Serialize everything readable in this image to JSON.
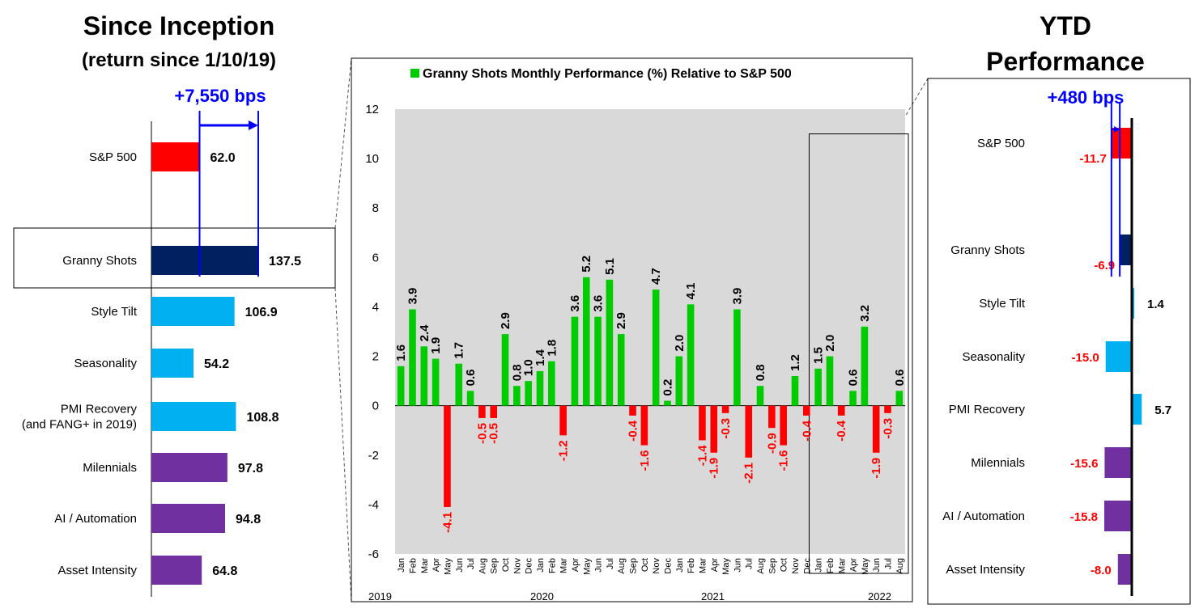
{
  "colors": {
    "sp500": "#ff0000",
    "granny": "#002060",
    "style": "#00b0f0",
    "theme": "#7030a0",
    "pos": "#00cc00",
    "neg": "#ff0000",
    "annot": "#0000ff",
    "plot_bg": "#d9d9d9",
    "neg_label": "#ff0000"
  },
  "left_panel": {
    "title": "Since Inception",
    "subtitle": "(return since 1/10/19)",
    "annotation": "+7,550 bps"
  },
  "right_panel": {
    "title_line1": "YTD",
    "title_line2": "Performance",
    "annotation": "+480 bps"
  },
  "chart_data": [
    {
      "id": "since-inception",
      "type": "bar",
      "orientation": "horizontal",
      "categories": [
        "S&P 500",
        "Granny Shots",
        "Style Tilt",
        "Seasonality",
        "PMI Recovery\n(and FANG+ in 2019)",
        "Milennials",
        "AI / Automation",
        "Asset Intensity"
      ],
      "values": [
        62.0,
        137.5,
        106.9,
        54.2,
        108.8,
        97.8,
        94.8,
        64.8
      ],
      "labels": [
        "62.0",
        "137.5",
        "106.9",
        "54.2",
        "108.8",
        "97.8",
        "94.8",
        "64.8"
      ],
      "color_keys": [
        "sp500",
        "granny",
        "style",
        "style",
        "style",
        "theme",
        "theme",
        "theme"
      ],
      "highlight": "Granny Shots",
      "xlim": [
        0,
        137.5
      ]
    },
    {
      "id": "monthly",
      "type": "bar",
      "title": "Granny Shots Monthly Performance (%) Relative to S&P 500",
      "categories": [
        "Jan",
        "Feb",
        "Mar",
        "Apr",
        "May",
        "Jun",
        "Jul",
        "Aug",
        "Sep",
        "Oct",
        "Nov",
        "Dec",
        "Jan",
        "Feb",
        "Mar",
        "Apr",
        "May",
        "Jun",
        "Jul",
        "Aug",
        "Sep",
        "Oct",
        "Nov",
        "Dec",
        "Jan",
        "Feb",
        "Mar",
        "Apr",
        "May",
        "Jun",
        "Jul",
        "Aug",
        "Sep",
        "Oct",
        "Nov",
        "Dec",
        "Jan",
        "Feb",
        "Mar",
        "Apr",
        "May",
        "Jun",
        "Jul",
        "Aug"
      ],
      "values": [
        1.6,
        3.9,
        2.4,
        1.9,
        -4.1,
        1.7,
        0.6,
        -0.5,
        -0.5,
        2.9,
        0.8,
        1.0,
        1.4,
        1.8,
        -1.2,
        3.6,
        5.2,
        3.6,
        5.1,
        2.9,
        -0.4,
        -1.6,
        4.7,
        0.2,
        2.0,
        4.1,
        -1.4,
        -1.9,
        -0.3,
        3.9,
        -2.1,
        0.8,
        -0.9,
        -1.6,
        1.2,
        -0.4,
        1.5,
        2.0,
        -0.4,
        0.6,
        3.2,
        -1.9,
        -0.3,
        0.6
      ],
      "labels": [
        "1.6",
        "3.9",
        "2.4",
        "1.9",
        "-4.1",
        "1.7",
        "0.6",
        "-0.5",
        "-0.5",
        "2.9",
        "0.8",
        "1.0",
        "1.4",
        "1.8",
        "-1.2",
        "3.6",
        "5.2",
        "3.6",
        "5.1",
        "2.9",
        "-0.4",
        "-1.6",
        "4.7",
        "0.2",
        "2.0",
        "4.1",
        "-1.4",
        "-1.9",
        "-0.3",
        "3.9",
        "-2.1",
        "0.8",
        "-0.9",
        "-1.6",
        "1.2",
        "-0.4",
        "1.5",
        "2.0",
        "-0.4",
        "0.6",
        "3.2",
        "-1.9",
        "-0.3",
        "0.6"
      ],
      "years": [
        {
          "label": "2019",
          "start": 0
        },
        {
          "label": "2020",
          "start": 12
        },
        {
          "label": "2021",
          "start": 24
        },
        {
          "label": "2022",
          "start": 36
        }
      ],
      "yticks": [
        "12",
        "10",
        "8",
        "6",
        "4",
        "2",
        "0",
        "-2",
        "-4",
        "-6"
      ],
      "ylim": [
        -6,
        12
      ],
      "highlight_range": [
        36,
        43
      ]
    },
    {
      "id": "ytd",
      "type": "bar",
      "orientation": "horizontal",
      "categories": [
        "S&P 500",
        "Granny Shots",
        "Style Tilt",
        "Seasonality",
        "PMI Recovery",
        "Milennials",
        "AI / Automation",
        "Asset Intensity"
      ],
      "values": [
        -11.7,
        -6.9,
        1.4,
        -15.0,
        5.7,
        -15.6,
        -15.8,
        -8.0
      ],
      "labels": [
        "-11.7",
        "-6.9",
        "1.4",
        "-15.0",
        "5.7",
        "-15.6",
        "-15.8",
        "-8.0"
      ],
      "color_keys": [
        "sp500",
        "granny",
        "style",
        "style",
        "style",
        "theme",
        "theme",
        "theme"
      ]
    }
  ]
}
